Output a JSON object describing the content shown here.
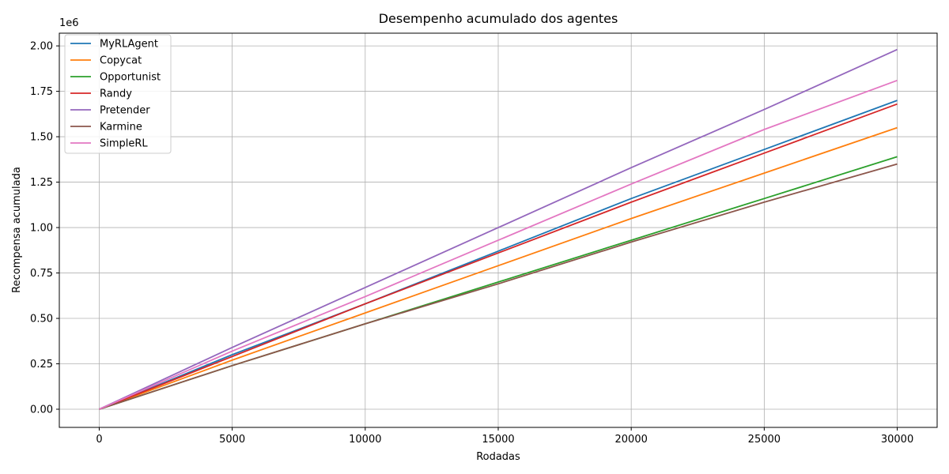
{
  "chart_data": {
    "type": "line",
    "title": "Desempenho acumulado dos agentes",
    "xlabel": "Rodadas",
    "ylabel": "Recompensa acumulada",
    "y_offset_text": "1e6",
    "xlim": [
      -1500,
      31500
    ],
    "ylim": [
      -0.1,
      2.07
    ],
    "x_ticks": [
      0,
      5000,
      10000,
      15000,
      20000,
      25000,
      30000
    ],
    "x_tick_labels": [
      "0",
      "5000",
      "10000",
      "15000",
      "20000",
      "25000",
      "30000"
    ],
    "y_ticks": [
      0,
      0.25,
      0.5,
      0.75,
      1.0,
      1.25,
      1.5,
      1.75,
      2.0
    ],
    "y_tick_labels": [
      "0.00",
      "0.25",
      "0.50",
      "0.75",
      "1.00",
      "1.25",
      "1.50",
      "1.75",
      "2.00"
    ],
    "grid": true,
    "legend_position": "top-left",
    "x": [
      0,
      5000,
      10000,
      15000,
      20000,
      25000,
      30000
    ],
    "series": [
      {
        "name": "MyRLAgent",
        "color": "#1f77b4",
        "values": [
          0,
          0.3,
          0.58,
          0.87,
          1.16,
          1.43,
          1.7
        ]
      },
      {
        "name": "Copycat",
        "color": "#ff7f0e",
        "values": [
          0,
          0.27,
          0.53,
          0.79,
          1.05,
          1.3,
          1.55
        ]
      },
      {
        "name": "Opportunist",
        "color": "#2ca02c",
        "values": [
          0,
          0.24,
          0.47,
          0.7,
          0.93,
          1.16,
          1.39
        ]
      },
      {
        "name": "Randy",
        "color": "#d62728",
        "values": [
          0,
          0.29,
          0.58,
          0.86,
          1.14,
          1.41,
          1.68
        ]
      },
      {
        "name": "Pretender",
        "color": "#9467bd",
        "values": [
          0,
          0.34,
          0.67,
          1.0,
          1.33,
          1.65,
          1.98
        ]
      },
      {
        "name": "Karmine",
        "color": "#8c564b",
        "values": [
          0,
          0.24,
          0.47,
          0.69,
          0.92,
          1.14,
          1.35
        ]
      },
      {
        "name": "SimpleRL",
        "color": "#e377c2",
        "values": [
          0,
          0.32,
          0.62,
          0.93,
          1.24,
          1.54,
          1.81
        ]
      }
    ]
  }
}
